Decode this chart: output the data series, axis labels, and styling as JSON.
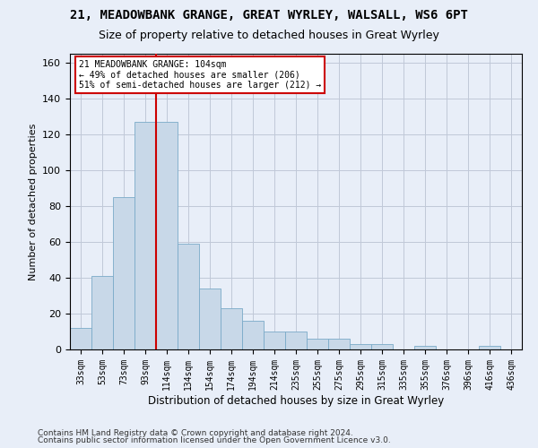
{
  "title1": "21, MEADOWBANK GRANGE, GREAT WYRLEY, WALSALL, WS6 6PT",
  "title2": "Size of property relative to detached houses in Great Wyrley",
  "xlabel": "Distribution of detached houses by size in Great Wyrley",
  "ylabel": "Number of detached properties",
  "footer1": "Contains HM Land Registry data © Crown copyright and database right 2024.",
  "footer2": "Contains public sector information licensed under the Open Government Licence v3.0.",
  "annotation_line1": "21 MEADOWBANK GRANGE: 104sqm",
  "annotation_line2": "← 49% of detached houses are smaller (206)",
  "annotation_line3": "51% of semi-detached houses are larger (212) →",
  "bin_labels": [
    "33sqm",
    "53sqm",
    "73sqm",
    "93sqm",
    "114sqm",
    "134sqm",
    "154sqm",
    "174sqm",
    "194sqm",
    "214sqm",
    "235sqm",
    "255sqm",
    "275sqm",
    "295sqm",
    "315sqm",
    "335sqm",
    "355sqm",
    "376sqm",
    "396sqm",
    "416sqm",
    "436sqm"
  ],
  "bar_heights": [
    12,
    41,
    85,
    127,
    127,
    59,
    34,
    23,
    16,
    10,
    10,
    6,
    6,
    3,
    3,
    0,
    2,
    0,
    0,
    2,
    0
  ],
  "bar_color": "#c8d8e8",
  "bar_edge_color": "#7aaac8",
  "red_line_x": 4,
  "ylim": [
    0,
    165
  ],
  "yticks": [
    0,
    20,
    40,
    60,
    80,
    100,
    120,
    140,
    160
  ],
  "background_color": "#e8eef8",
  "grid_color": "#c0c8d8",
  "annotation_box_color": "#ffffff",
  "annotation_box_edge": "#cc0000",
  "red_line_color": "#cc0000",
  "title1_fontsize": 10,
  "title2_fontsize": 9,
  "xlabel_fontsize": 8.5,
  "ylabel_fontsize": 8,
  "footer_fontsize": 6.5
}
